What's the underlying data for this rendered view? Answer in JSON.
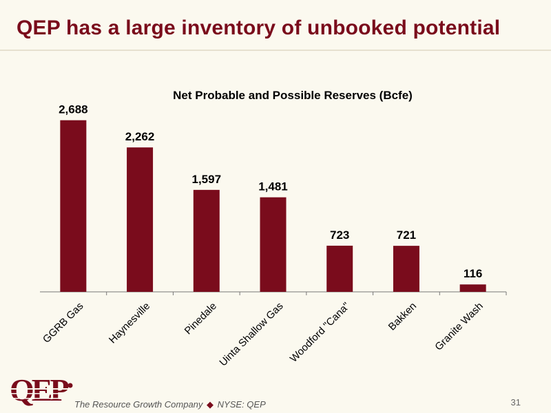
{
  "slide": {
    "title": "QEP has a large inventory of unbooked potential",
    "page_number": "31"
  },
  "footer": {
    "logo_text": "QEP",
    "company_tagline": "The Resource Growth Company",
    "separator": "◆",
    "exchange": "NYSE: QEP"
  },
  "colors": {
    "bar": "#7a0c1c",
    "title": "#7a0c1c",
    "background": "#fbf9ef"
  },
  "chart_data": {
    "type": "bar",
    "title": "Net Probable and Possible Reserves (Bcfe)",
    "categories": [
      "GGRB Gas",
      "Haynesville",
      "Pinedale",
      "Uinta Shallow Gas",
      "Woodford \"Cana\"",
      "Bakken",
      "Granite Wash"
    ],
    "values": [
      2688,
      2262,
      1597,
      1481,
      723,
      721,
      116
    ],
    "value_labels": [
      "2,688",
      "2,262",
      "1,597",
      "1,481",
      "723",
      "721",
      "116"
    ],
    "ylim": [
      0,
      2900
    ],
    "grid": false,
    "legend": "none",
    "xlabel": "",
    "ylabel": ""
  }
}
